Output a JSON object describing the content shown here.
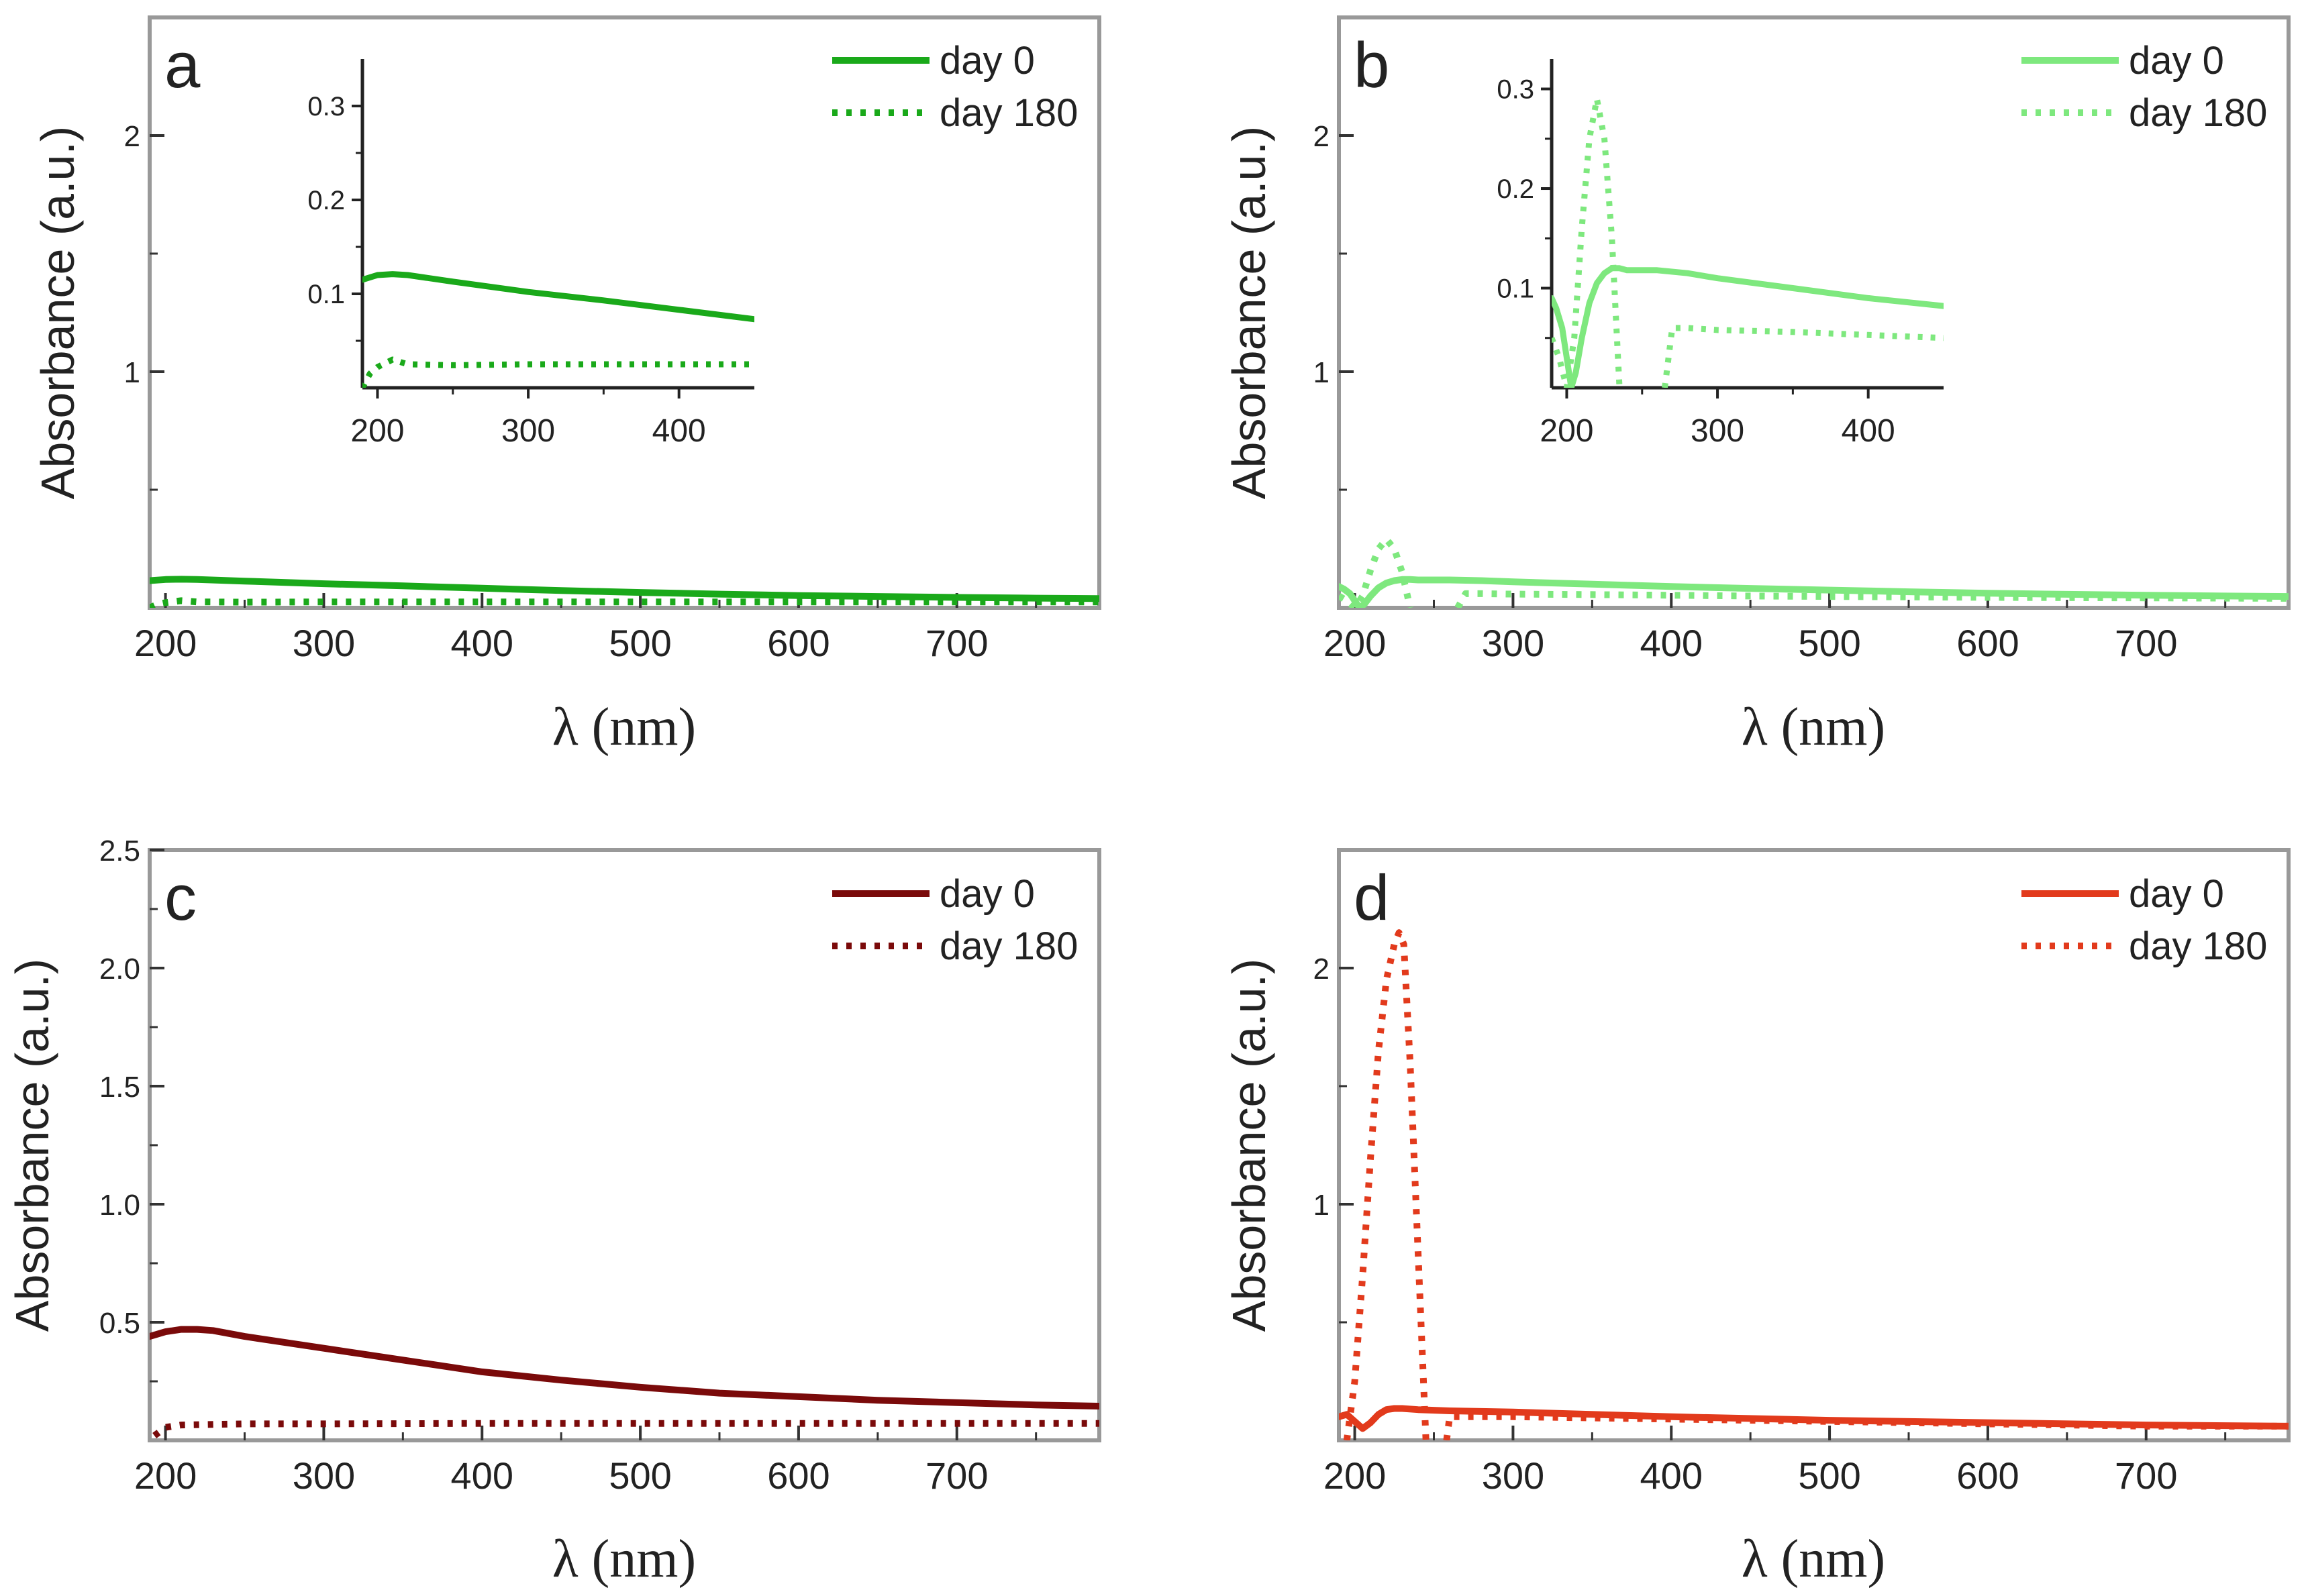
{
  "legend": {
    "solid_label": "day 0",
    "dotted_label": "day 180"
  },
  "chart_data": [
    {
      "type": "line",
      "panel_label": "a",
      "color": "#1aa91a",
      "xlabel": "λ (nm)",
      "ylabel": "Absorbance (a.u.)",
      "xlim": [
        190,
        790
      ],
      "ylim": [
        0,
        2.5
      ],
      "x_ticks": [
        200,
        300,
        400,
        500,
        600,
        700
      ],
      "y_ticks": [
        1,
        2
      ],
      "y_tick_labels": [
        "1",
        "2"
      ],
      "series": [
        {
          "name": "day 0",
          "style": "solid",
          "x": [
            190,
            200,
            210,
            220,
            250,
            300,
            350,
            400,
            450,
            500,
            550,
            600,
            650,
            700,
            750,
            790
          ],
          "y": [
            0.115,
            0.12,
            0.121,
            0.12,
            0.113,
            0.102,
            0.093,
            0.083,
            0.073,
            0.065,
            0.058,
            0.052,
            0.048,
            0.044,
            0.041,
            0.039
          ]
        },
        {
          "name": "day 180",
          "style": "dotted",
          "x": [
            190,
            195,
            200,
            205,
            210,
            220,
            250,
            300,
            350,
            400,
            450,
            500,
            550,
            600,
            650,
            700,
            750,
            790
          ],
          "y": [
            0.0,
            0.015,
            0.022,
            0.026,
            0.03,
            0.025,
            0.024,
            0.025,
            0.025,
            0.025,
            0.025,
            0.025,
            0.025,
            0.025,
            0.025,
            0.025,
            0.025,
            0.025
          ]
        }
      ],
      "inset": {
        "xlim": [
          190,
          450
        ],
        "ylim": [
          0,
          0.35
        ],
        "x_ticks": [
          200,
          300,
          400
        ],
        "y_ticks": [
          0.1,
          0.2,
          0.3
        ],
        "y_tick_labels": [
          "0.1",
          "0.2",
          "0.3"
        ]
      }
    },
    {
      "type": "line",
      "panel_label": "b",
      "color": "#7ee87e",
      "xlabel": "λ (nm)",
      "ylabel": "Absorbance (a.u.)",
      "xlim": [
        190,
        790
      ],
      "ylim": [
        0,
        2.5
      ],
      "x_ticks": [
        200,
        300,
        400,
        500,
        600,
        700
      ],
      "y_ticks": [
        1,
        2
      ],
      "y_tick_labels": [
        "1",
        "2"
      ],
      "series": [
        {
          "name": "day 0",
          "style": "solid",
          "x": [
            190,
            193,
            197,
            200,
            203,
            206,
            210,
            215,
            220,
            225,
            230,
            235,
            240,
            250,
            260,
            280,
            300,
            350,
            400,
            450,
            500,
            550,
            600,
            650,
            700,
            750,
            790
          ],
          "y": [
            0.09,
            0.08,
            0.06,
            0.03,
            0.0,
            0.015,
            0.05,
            0.085,
            0.105,
            0.115,
            0.12,
            0.12,
            0.118,
            0.118,
            0.118,
            0.115,
            0.11,
            0.1,
            0.09,
            0.082,
            0.075,
            0.068,
            0.062,
            0.057,
            0.053,
            0.05,
            0.048
          ]
        },
        {
          "name": "day 180",
          "style": "dotted",
          "x": [
            190,
            195,
            200,
            205,
            210,
            215,
            220,
            225,
            230,
            235,
            240,
            265,
            270,
            280,
            300,
            350,
            400,
            450,
            500,
            550,
            600,
            650,
            700,
            750,
            790
          ],
          "y": [
            0.05,
            0.03,
            0.0,
            0.05,
            0.16,
            0.25,
            0.29,
            0.25,
            0.15,
            0.0,
            null,
            0.0,
            0.06,
            0.06,
            0.058,
            0.056,
            0.053,
            0.05,
            0.048,
            0.046,
            0.044,
            0.043,
            0.042,
            0.041,
            0.04
          ]
        }
      ],
      "inset": {
        "xlim": [
          190,
          450
        ],
        "ylim": [
          0,
          0.33
        ],
        "x_ticks": [
          200,
          300,
          400
        ],
        "y_ticks": [
          0.1,
          0.2,
          0.3
        ],
        "y_tick_labels": [
          "0.1",
          "0.2",
          "0.3"
        ]
      }
    },
    {
      "type": "line",
      "panel_label": "c",
      "color": "#7a0a0a",
      "xlabel": "λ (nm)",
      "ylabel": "Absorbance (a.u.)",
      "xlim": [
        190,
        790
      ],
      "ylim": [
        0,
        2.5
      ],
      "x_ticks": [
        200,
        300,
        400,
        500,
        600,
        700
      ],
      "y_ticks": [
        0.5,
        1.0,
        1.5,
        2.0,
        2.5
      ],
      "y_tick_labels": [
        "0.5",
        "1.0",
        "1.5",
        "2.0",
        "2.5"
      ],
      "series": [
        {
          "name": "day 0",
          "style": "solid",
          "x": [
            190,
            200,
            210,
            220,
            230,
            250,
            300,
            350,
            400,
            450,
            500,
            550,
            600,
            650,
            700,
            750,
            790
          ],
          "y": [
            0.44,
            0.46,
            0.47,
            0.47,
            0.465,
            0.44,
            0.39,
            0.34,
            0.29,
            0.255,
            0.225,
            0.2,
            0.185,
            0.17,
            0.16,
            0.15,
            0.145
          ]
        },
        {
          "name": "day 180",
          "style": "dotted",
          "x": [
            193,
            200,
            210,
            250,
            300,
            400,
            500,
            600,
            700,
            790
          ],
          "y": [
            0.02,
            0.055,
            0.065,
            0.07,
            0.07,
            0.072,
            0.072,
            0.072,
            0.072,
            0.072
          ]
        }
      ]
    },
    {
      "type": "line",
      "panel_label": "d",
      "color": "#e23a1c",
      "xlabel": "λ (nm)",
      "ylabel": "Absorbance (a.u.)",
      "xlim": [
        190,
        790
      ],
      "ylim": [
        0,
        2.5
      ],
      "x_ticks": [
        200,
        300,
        400,
        500,
        600,
        700
      ],
      "y_ticks": [
        1,
        2
      ],
      "y_tick_labels": [
        "1",
        "2"
      ],
      "series": [
        {
          "name": "day 0",
          "style": "solid",
          "x": [
            190,
            195,
            200,
            205,
            210,
            215,
            220,
            225,
            230,
            240,
            260,
            300,
            400,
            500,
            600,
            700,
            790
          ],
          "y": [
            0.1,
            0.11,
            0.08,
            0.05,
            0.075,
            0.11,
            0.13,
            0.135,
            0.135,
            0.13,
            0.125,
            0.12,
            0.1,
            0.085,
            0.075,
            0.065,
            0.06
          ]
        },
        {
          "name": "day 180",
          "style": "dotted",
          "x": [
            195,
            200,
            205,
            210,
            215,
            220,
            225,
            228,
            231,
            235,
            240,
            245,
            255,
            258,
            260,
            270,
            300,
            400,
            500,
            600,
            700,
            790
          ],
          "y": [
            0.0,
            0.25,
            0.7,
            1.2,
            1.65,
            1.95,
            2.1,
            2.15,
            2.1,
            1.6,
            0.8,
            0.0,
            null,
            0.0,
            0.1,
            0.1,
            0.1,
            0.09,
            0.08,
            0.07,
            0.06,
            0.06
          ]
        }
      ]
    }
  ]
}
